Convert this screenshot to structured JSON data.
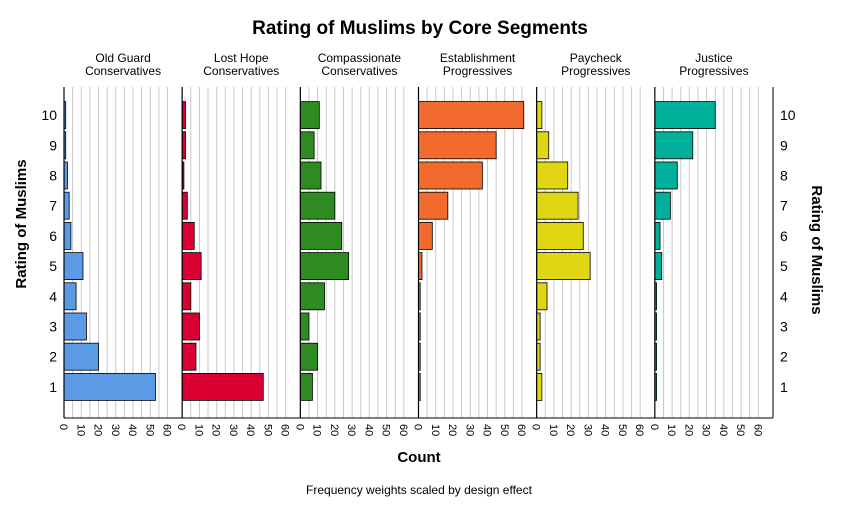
{
  "chart_data": {
    "type": "bar",
    "orientation": "horizontal",
    "title": "Rating of Muslims by Core Segments",
    "xlabel": "Count",
    "ylabel_left": "Rating of Muslims",
    "ylabel_right": "Rating of Muslims",
    "footnote": "Frequency weights scaled by design effect",
    "categories": [
      "1",
      "2",
      "3",
      "4",
      "5",
      "6",
      "7",
      "8",
      "9",
      "10"
    ],
    "xlim": [
      0,
      65
    ],
    "xticks": [
      "0",
      "10",
      "20",
      "30",
      "40",
      "50",
      "60"
    ],
    "grid": true,
    "panels": [
      {
        "name": "Old Guard Conservatives",
        "label_lines": [
          "Old Guard",
          "Conservatives"
        ],
        "color": "#5b9be6",
        "values": [
          53,
          20,
          13,
          7,
          11,
          4,
          3,
          2,
          1,
          1
        ]
      },
      {
        "name": "Lost Hope Conservatives",
        "label_lines": [
          "Lost Hope",
          "Conservatives"
        ],
        "color": "#d90032",
        "values": [
          47,
          8,
          10,
          5,
          11,
          7,
          3,
          1,
          2,
          2
        ]
      },
      {
        "name": "Compassionate Conservatives",
        "label_lines": [
          "Compassionate",
          "Conservatives"
        ],
        "color": "#2e8b22",
        "values": [
          7,
          10,
          5,
          14,
          28,
          24,
          20,
          12,
          8,
          11
        ]
      },
      {
        "name": "Establishment Progressives",
        "label_lines": [
          "Establishment",
          "Progressives"
        ],
        "color": "#f26a2e",
        "values": [
          1,
          1,
          1,
          1,
          2,
          8,
          17,
          37,
          45,
          61
        ]
      },
      {
        "name": "Paycheck Progressives",
        "label_lines": [
          "Paycheck",
          "Progressives"
        ],
        "color": "#e0d612",
        "values": [
          3,
          2,
          2,
          6,
          31,
          27,
          24,
          18,
          7,
          3
        ]
      },
      {
        "name": "Justice Progressives",
        "label_lines": [
          "Justice",
          "Progressives"
        ],
        "color": "#00b09b",
        "values": [
          1,
          1,
          1,
          1,
          4,
          3,
          9,
          13,
          22,
          35
        ]
      }
    ]
  }
}
